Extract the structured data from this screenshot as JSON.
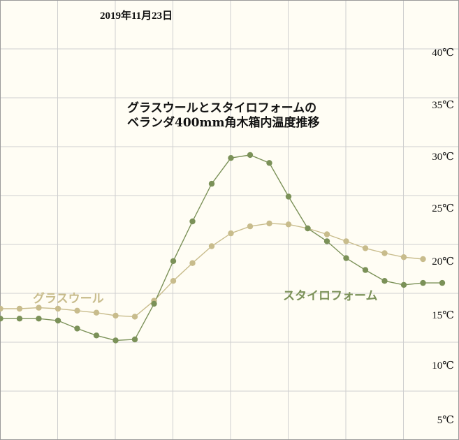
{
  "chart_data": {
    "type": "line",
    "date": "2019年11月23日",
    "title": [
      "グラスウールとスタイロフォームの",
      "ベランダ400mm角木箱内温度推移"
    ],
    "yticks": [
      {
        "value": 40,
        "label": "40℃"
      },
      {
        "value": 35,
        "label": "35℃"
      },
      {
        "value": 30,
        "label": "30℃"
      },
      {
        "value": 25,
        "label": "25℃"
      },
      {
        "value": 20,
        "label": "20℃"
      },
      {
        "value": 15,
        "label": "15℃"
      },
      {
        "value": 10,
        "label": "10℃"
      },
      {
        "value": 5,
        "label": "5℃"
      }
    ],
    "ylim": [
      3,
      45
    ],
    "grid": true,
    "x": [
      0,
      1,
      2,
      3,
      4,
      5,
      6,
      7,
      8,
      9,
      10,
      11,
      12,
      13,
      14,
      15,
      16,
      17,
      18,
      19,
      20,
      21,
      22,
      23
    ],
    "series": [
      {
        "name": "グラスウール",
        "color": "#c8bc8c",
        "values": [
          15.0,
          15.0,
          15.1,
          15.0,
          14.8,
          14.6,
          14.3,
          14.2,
          15.8,
          17.8,
          19.6,
          21.3,
          22.6,
          23.3,
          23.6,
          23.5,
          23.1,
          22.5,
          21.8,
          21.1,
          20.6,
          20.2,
          20.0,
          null
        ]
      },
      {
        "name": "スタイロフォーム",
        "color": "#7b9158",
        "values": [
          14.0,
          14.0,
          14.0,
          13.8,
          13.0,
          12.3,
          11.8,
          11.9,
          15.5,
          19.8,
          23.8,
          27.6,
          30.2,
          30.5,
          29.7,
          26.3,
          23.1,
          21.8,
          20.1,
          18.9,
          17.8,
          17.4,
          17.6,
          17.6
        ]
      }
    ]
  }
}
